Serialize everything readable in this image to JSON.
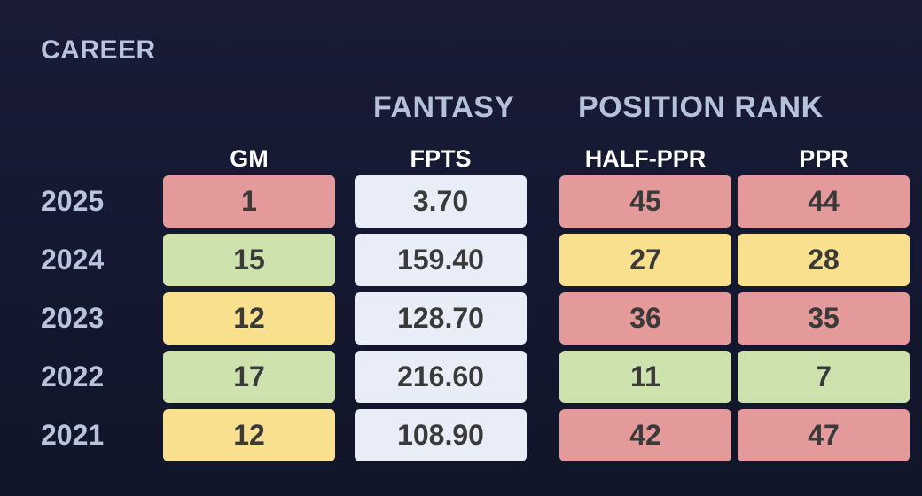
{
  "section_title": "CAREER",
  "group_headers": {
    "fantasy": "FANTASY",
    "position_rank": "POSITION RANK"
  },
  "columns": {
    "gm": "GM",
    "fpts": "FPTS",
    "half_ppr": "HALF-PPR",
    "ppr": "PPR"
  },
  "colors": {
    "red": "#e49a9a",
    "green": "#cde2ad",
    "yellow": "#f9e08f",
    "neutral": "#e8edf8"
  },
  "rows": [
    {
      "year": "2025",
      "gm": "1",
      "gm_color": "red",
      "fpts": "3.70",
      "half_ppr": "45",
      "half_ppr_color": "red",
      "ppr": "44",
      "ppr_color": "red"
    },
    {
      "year": "2024",
      "gm": "15",
      "gm_color": "green",
      "fpts": "159.40",
      "half_ppr": "27",
      "half_ppr_color": "yellow",
      "ppr": "28",
      "ppr_color": "yellow"
    },
    {
      "year": "2023",
      "gm": "12",
      "gm_color": "yellow",
      "fpts": "128.70",
      "half_ppr": "36",
      "half_ppr_color": "red",
      "ppr": "35",
      "ppr_color": "red"
    },
    {
      "year": "2022",
      "gm": "17",
      "gm_color": "green",
      "fpts": "216.60",
      "half_ppr": "11",
      "half_ppr_color": "green",
      "ppr": "7",
      "ppr_color": "green"
    },
    {
      "year": "2021",
      "gm": "12",
      "gm_color": "yellow",
      "fpts": "108.90",
      "half_ppr": "42",
      "half_ppr_color": "red",
      "ppr": "47",
      "ppr_color": "red"
    }
  ]
}
